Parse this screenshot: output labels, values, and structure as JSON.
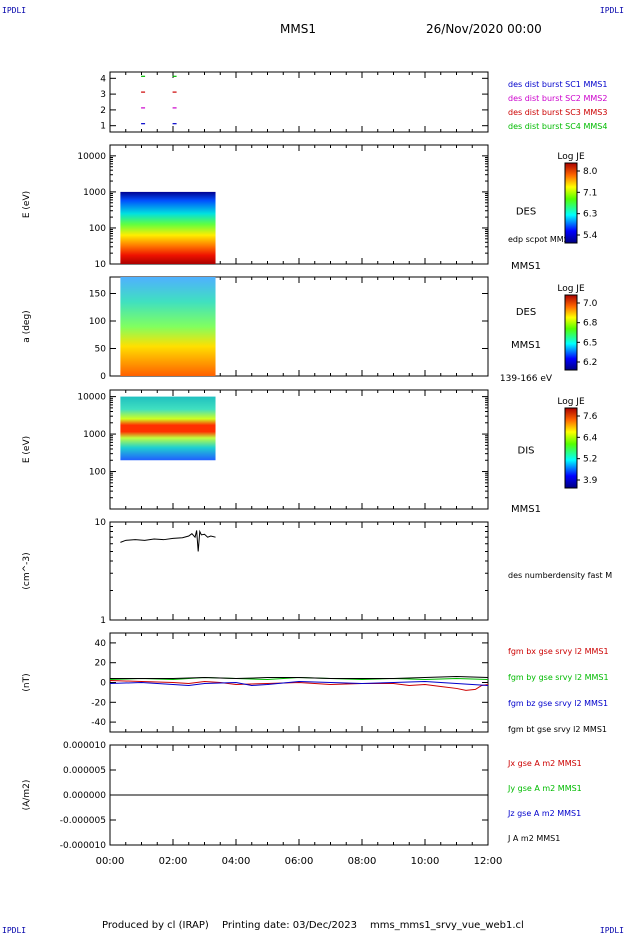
{
  "header": {
    "corner_left": "IPDLI",
    "corner_right": "IPDLI",
    "spacecraft": "MMS1",
    "date": "26/Nov/2020 00:00"
  },
  "footer": {
    "produced_by": "Produced by cl (IRAP)",
    "printing_date": "Printing date: 03/Dec/2023",
    "filename": "mms_mms1_srvy_vue_web1.cl",
    "corner_left": "IPDLI",
    "corner_right": "IPDLI"
  },
  "time_axis": {
    "range_hours": [
      0,
      12
    ],
    "ticks": [
      "00:00",
      "02:00",
      "04:00",
      "06:00",
      "08:00",
      "10:00",
      "12:00"
    ]
  },
  "colors": {
    "red": "#cc0000",
    "green": "#00bb00",
    "blue": "#0000cc",
    "magenta": "#cc00cc",
    "black": "#000000"
  },
  "chart_data": [
    {
      "type": "scatter",
      "name": "burst-availability",
      "ylim": [
        0.6,
        4.4
      ],
      "yticks": [
        "1",
        "2",
        "3",
        "4"
      ],
      "legend": [
        {
          "label": "des dist burst SC1 MMS1",
          "color": "#0000cc"
        },
        {
          "label": "des dist burst SC2 MMS2",
          "color": "#cc00cc"
        },
        {
          "label": "des dist burst SC3 MMS3",
          "color": "#cc0000"
        },
        {
          "label": "des dist burst SC4 MMS4",
          "color": "#00bb00"
        }
      ],
      "points": [
        {
          "t": 1.05,
          "sc": 4
        },
        {
          "t": 2.05,
          "sc": 4
        },
        {
          "t": 1.05,
          "sc": 3
        },
        {
          "t": 2.05,
          "sc": 3
        },
        {
          "t": 1.05,
          "sc": 2
        },
        {
          "t": 2.05,
          "sc": 2
        },
        {
          "t": 1.05,
          "sc": 1
        },
        {
          "t": 2.05,
          "sc": 1
        }
      ]
    },
    {
      "type": "heatmap",
      "name": "des-energy-spectrogram",
      "ylabel": "E (eV)",
      "yscale": "log",
      "ylim": [
        10,
        20000
      ],
      "yticks": [
        "10",
        "100",
        "1000",
        "10000"
      ],
      "data_time_range": [
        0.33,
        3.35
      ],
      "data_energy_range": [
        10,
        1000
      ],
      "instrument": "DES",
      "extra_label": "edp scpot MMS1",
      "bottom_label": "MMS1",
      "colorbar": {
        "title": "Log JE",
        "ticks": [
          "8.0",
          "7.1",
          "6.3",
          "5.4"
        ]
      }
    },
    {
      "type": "heatmap",
      "name": "des-pitch-angle",
      "ylabel": "a (deg)",
      "ylim": [
        0,
        180
      ],
      "yticks": [
        "0",
        "50",
        "100",
        "150"
      ],
      "data_time_range": [
        0.33,
        3.35
      ],
      "instrument": "DES",
      "spacecraft_label": "MMS1",
      "energy_range_label": "139-166 eV",
      "colorbar": {
        "title": "Log JE",
        "ticks": [
          "7.0",
          "6.8",
          "6.5",
          "6.2"
        ]
      }
    },
    {
      "type": "heatmap",
      "name": "dis-energy-spectrogram",
      "ylabel": "E (eV)",
      "yscale": "log",
      "ylim": [
        10,
        15000
      ],
      "yticks": [
        "100",
        "1000",
        "10000"
      ],
      "data_time_range": [
        0.33,
        3.35
      ],
      "data_energy_range": [
        200,
        10000
      ],
      "instrument": "DIS",
      "bottom_label": "MMS1",
      "colorbar": {
        "title": "Log JE",
        "ticks": [
          "7.6",
          "6.4",
          "5.2",
          "3.9"
        ]
      }
    },
    {
      "type": "line",
      "name": "electron-density",
      "ylabel": "(cm^-3)",
      "yscale": "log",
      "ylim": [
        1,
        10
      ],
      "yticks": [
        "1",
        "10"
      ],
      "legend": [
        {
          "label": "des numberdensity fast M",
          "color": "#000000"
        }
      ],
      "series": [
        {
          "name": "des numberdensity fast M",
          "t": [
            0.33,
            0.5,
            0.8,
            1.1,
            1.4,
            1.7,
            2.0,
            2.3,
            2.5,
            2.6,
            2.7,
            2.75,
            2.8,
            2.85,
            2.9,
            3.0,
            3.1,
            3.2,
            3.35
          ],
          "v": [
            6.2,
            6.5,
            6.6,
            6.5,
            6.7,
            6.6,
            6.8,
            6.9,
            7.2,
            7.6,
            7.0,
            8.2,
            5.0,
            8.0,
            7.4,
            7.5,
            7.0,
            7.2,
            7.0
          ]
        }
      ]
    },
    {
      "type": "line",
      "name": "magnetic-field",
      "ylabel": "(nT)",
      "ylim": [
        -50,
        50
      ],
      "yticks": [
        "-40",
        "-20",
        "0",
        "20",
        "40"
      ],
      "legend": [
        {
          "label": "fgm bx gse srvy l2 MMS1",
          "color": "#cc0000"
        },
        {
          "label": "fgm by gse srvy l2 MMS1",
          "color": "#00bb00"
        },
        {
          "label": "fgm bz gse srvy l2 MMS1",
          "color": "#0000cc"
        },
        {
          "label": "fgm bt gse srvy l2 MMS1",
          "color": "#000000"
        }
      ],
      "series": [
        {
          "name": "fgm bx gse srvy l2 MMS1",
          "color": "#cc0000",
          "t": [
            0,
            1,
            2,
            2.5,
            3,
            3.5,
            4,
            5,
            6,
            7,
            8,
            9,
            9.5,
            10,
            10.5,
            11,
            11.3,
            11.6,
            11.8,
            12
          ],
          "v": [
            2,
            1,
            0,
            -1,
            1,
            0,
            -2,
            -1,
            0,
            -2,
            -1,
            -1,
            -3,
            -2,
            -4,
            -6,
            -8,
            -7,
            -3,
            -2
          ]
        },
        {
          "name": "fgm by gse srvy l2 MMS1",
          "color": "#00bb00",
          "t": [
            0,
            1,
            2,
            3,
            4,
            5,
            6,
            7,
            8,
            9,
            10,
            11,
            12
          ],
          "v": [
            3,
            4,
            3,
            5,
            4,
            3,
            5,
            4,
            3,
            4,
            3,
            4,
            3
          ]
        },
        {
          "name": "fgm bz gse srvy l2 MMS1",
          "color": "#0000cc",
          "t": [
            0,
            1,
            2,
            2.5,
            3,
            4,
            4.5,
            5,
            6,
            7,
            8,
            9,
            10,
            11,
            12
          ],
          "v": [
            -1,
            0,
            -2,
            -3,
            -1,
            0,
            -3,
            -2,
            1,
            0,
            -1,
            0,
            1,
            -1,
            -3
          ]
        },
        {
          "name": "fgm bt gse srvy l2 MMS1",
          "color": "#000000",
          "t": [
            0,
            1,
            2,
            3,
            4,
            5,
            6,
            7,
            8,
            9,
            10,
            11,
            12
          ],
          "v": [
            4,
            4,
            4,
            5,
            4,
            5,
            5,
            4,
            4,
            4,
            5,
            6,
            5
          ]
        }
      ]
    },
    {
      "type": "line",
      "name": "current-density",
      "ylabel": "(A/m2)",
      "ylim": [
        -1e-05,
        1e-05
      ],
      "yticks": [
        "-0.000010",
        "-0.000005",
        "0.000000",
        "0.000005",
        "0.000010"
      ],
      "legend": [
        {
          "label": "Jx gse A m2 MMS1",
          "color": "#cc0000"
        },
        {
          "label": "Jy gse A m2 MMS1",
          "color": "#00bb00"
        },
        {
          "label": "Jz gse A m2 MMS1",
          "color": "#0000cc"
        },
        {
          "label": "J A m2 MMS1",
          "color": "#000000"
        }
      ],
      "series": [
        {
          "name": "J A m2 MMS1",
          "color": "#000000",
          "t": [
            0,
            12
          ],
          "v": [
            0,
            0
          ]
        }
      ]
    }
  ]
}
